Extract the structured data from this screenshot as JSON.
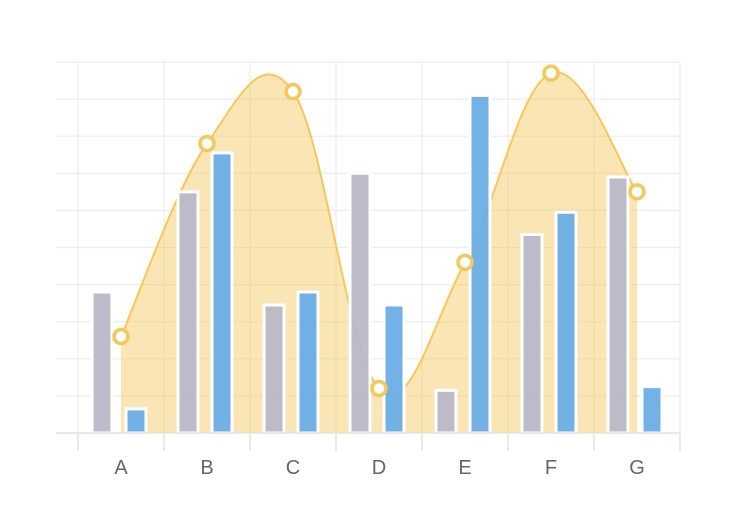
{
  "chart_data": {
    "type": "bar",
    "title": "",
    "xlabel": "",
    "ylabel": "",
    "categories": [
      "A",
      "B",
      "C",
      "D",
      "E",
      "F",
      "G"
    ],
    "ylim": [
      0,
      10
    ],
    "grid": true,
    "legend": "none",
    "series": [
      {
        "kind": "bar",
        "color": "#b8b8c8",
        "values": [
          3.8,
          6.5,
          3.45,
          7.0,
          1.15,
          5.35,
          6.9
        ]
      },
      {
        "kind": "bar",
        "color": "#6aaee6",
        "values": [
          0.65,
          7.55,
          3.8,
          3.45,
          9.1,
          5.95,
          1.25
        ]
      },
      {
        "kind": "area",
        "color": "#f5c85a",
        "values": [
          2.6,
          7.8,
          9.2,
          1.2,
          4.6,
          9.7,
          6.5
        ]
      }
    ]
  }
}
